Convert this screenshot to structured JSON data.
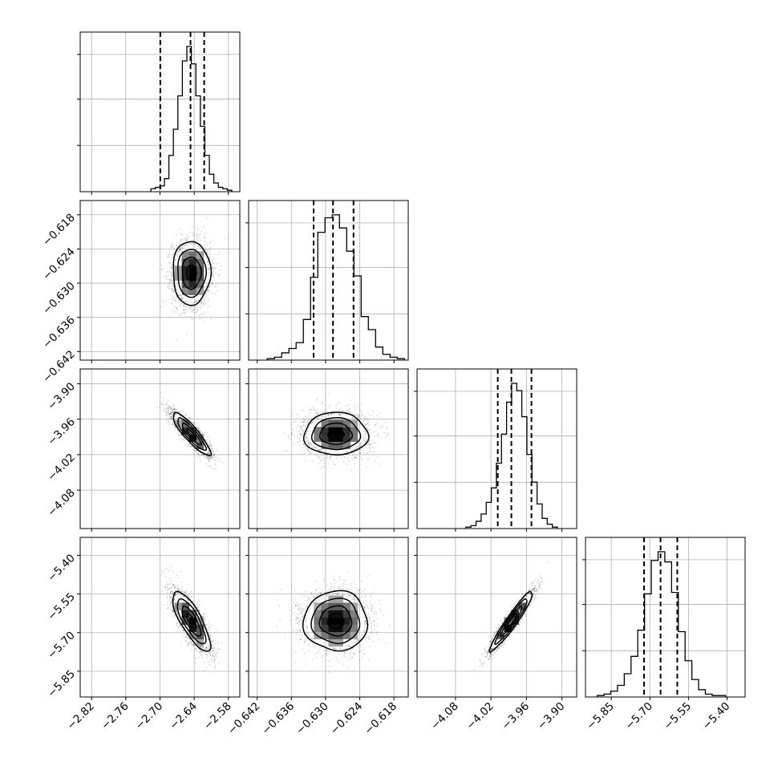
{
  "chart_data": {
    "type": "corner",
    "grid": true,
    "quantiles": [
      0.16,
      0.5,
      0.84
    ],
    "ylabel_rotation_deg": -45,
    "parameters": [
      {
        "range": [
          -2.84,
          -2.56
        ],
        "mean": -2.645,
        "sigma": 0.0165,
        "ticks": [
          -2.82,
          -2.76,
          -2.7,
          -2.64,
          -2.58
        ],
        "tick_labels": [
          "−2.82",
          "−2.76",
          "−2.70",
          "−2.64",
          "−2.58"
        ],
        "quantile_values": [
          -2.6995,
          -2.6465,
          -2.6225
        ],
        "histogram_counts": [
          2,
          3,
          4,
          9,
          25,
          43,
          66,
          90,
          100,
          88,
          66,
          45,
          25,
          12,
          6,
          3,
          2,
          1
        ]
      },
      {
        "range": [
          -0.6435,
          -0.6155
        ],
        "mean": -0.6282,
        "sigma": 0.0028,
        "ticks": [
          -0.642,
          -0.636,
          -0.63,
          -0.624,
          -0.618
        ],
        "tick_labels": [
          "−0.642",
          "−0.636",
          "−0.630",
          "−0.624",
          "−0.618"
        ],
        "quantile_values": [
          -0.6321,
          -0.6287,
          -0.6251
        ],
        "histogram_counts": [
          1,
          2,
          5,
          8,
          12,
          28,
          57,
          88,
          98,
          100,
          91,
          75,
          58,
          30,
          21,
          9,
          4,
          2,
          1
        ]
      },
      {
        "range": [
          -4.145,
          -3.875
        ],
        "mean": -3.985,
        "sigma": 0.018,
        "ticks": [
          -4.08,
          -4.02,
          -3.96,
          -3.9
        ],
        "tick_labels": [
          "−4.08",
          "−4.02",
          "−3.96",
          "−3.90"
        ],
        "quantile_values": [
          -4.0085,
          -3.9855,
          -3.9515
        ],
        "histogram_counts": [
          1,
          2,
          5,
          10,
          18,
          28,
          45,
          65,
          87,
          100,
          95,
          77,
          51,
          32,
          17,
          7,
          3,
          1
        ]
      },
      {
        "range": [
          -5.95,
          -5.33
        ],
        "mean": -5.655,
        "sigma": 0.058,
        "ticks": [
          -5.85,
          -5.7,
          -5.55,
          -5.4
        ],
        "tick_labels": [
          "−5.85",
          "−5.70",
          "−5.55",
          "−5.40"
        ],
        "quantile_values": [
          -5.7225,
          -5.6585,
          -5.5935
        ],
        "histogram_counts": [
          1,
          2,
          4,
          8,
          16,
          28,
          46,
          71,
          94,
          100,
          93,
          72,
          45,
          25,
          12,
          5,
          2,
          1,
          1
        ]
      }
    ],
    "correlations": [
      {
        "pair": [
          0,
          1
        ],
        "rho": 0.0
      },
      {
        "pair": [
          0,
          2
        ],
        "rho": -0.88
      },
      {
        "pair": [
          0,
          3
        ],
        "rho": -0.78
      },
      {
        "pair": [
          1,
          2
        ],
        "rho": 0.0
      },
      {
        "pair": [
          1,
          3
        ],
        "rho": 0.0
      },
      {
        "pair": [
          2,
          3
        ],
        "rho": 0.95
      }
    ]
  }
}
